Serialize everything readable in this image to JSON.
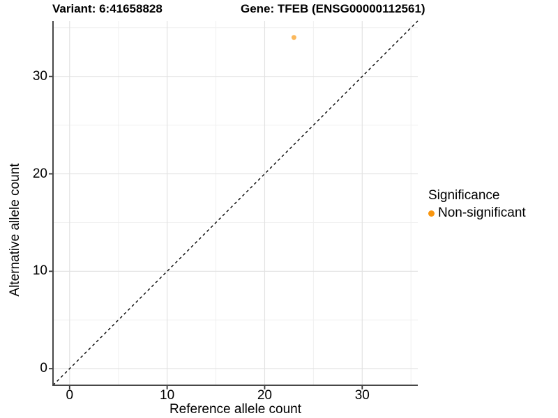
{
  "chart_data": {
    "type": "scatter",
    "title_variant": "Variant: 6:41658828",
    "title_gene": "Gene: TFEB (ENSG00000112561)",
    "xlabel": "Reference allele count",
    "ylabel": "Alternative allele count",
    "xlim": [
      -1.7,
      35.7
    ],
    "ylim": [
      -1.7,
      35.7
    ],
    "x_ticks": [
      0,
      10,
      20,
      30
    ],
    "y_ticks": [
      0,
      10,
      20,
      30
    ],
    "x_minor_ticks": [
      5,
      15,
      25,
      35
    ],
    "y_minor_ticks": [
      5,
      15,
      25,
      35
    ],
    "grid": true,
    "points": [
      {
        "x": 23,
        "y": 34,
        "group": "Non-significant"
      }
    ],
    "identity_line": {
      "slope": 1,
      "intercept": 0,
      "style": "dashed",
      "color": "#000000"
    },
    "legend": {
      "title": "Significance",
      "position": "right",
      "items": [
        {
          "label": "Non-significant",
          "color": "#F9960F"
        }
      ]
    },
    "colors": {
      "point": "#F9960F",
      "point_opacity": 0.68,
      "grid_major": "#E2E2E2",
      "grid_minor": "#F0F0F0",
      "axis_line": "#474747",
      "tick_mark": "#333333"
    }
  }
}
